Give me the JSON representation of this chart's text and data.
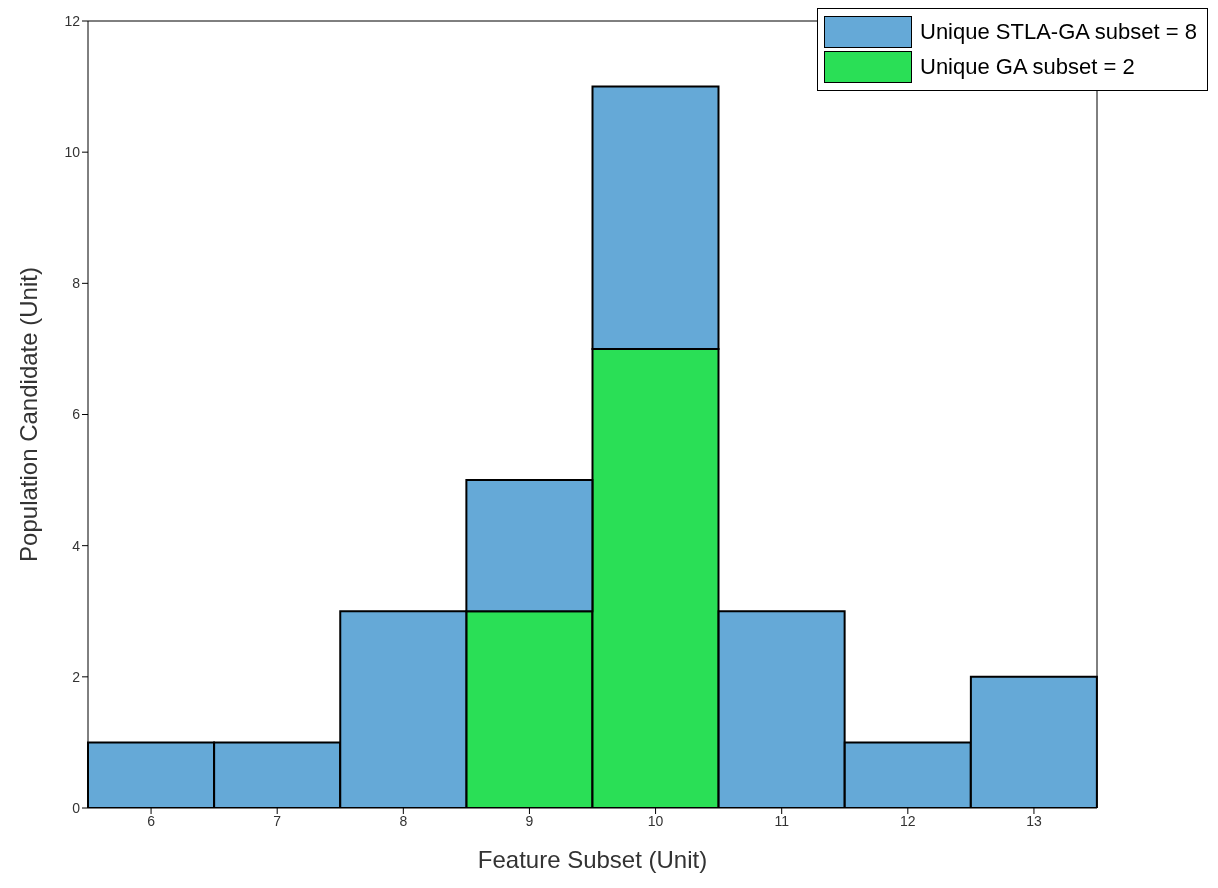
{
  "chart_data": {
    "type": "bar",
    "stacked": true,
    "xlabel": "Feature Subset (Unit)",
    "ylabel": "Population Candidate (Unit)",
    "categories": [
      "6",
      "7",
      "8",
      "9",
      "10",
      "11",
      "12",
      "13"
    ],
    "series": [
      {
        "name": "Unique GA subset = 2",
        "color": "#2adf56",
        "values": [
          0,
          0,
          0,
          3,
          7,
          0,
          0,
          0
        ]
      },
      {
        "name": "Unique STLA-GA subset = 8",
        "color": "#65a9d7",
        "values": [
          1,
          1,
          3,
          2,
          4,
          3,
          1,
          2
        ]
      }
    ],
    "ylim": [
      0,
      12
    ],
    "yticks": [
      0,
      2,
      4,
      6,
      8,
      10,
      12
    ],
    "grid": false,
    "legend": "top right"
  }
}
